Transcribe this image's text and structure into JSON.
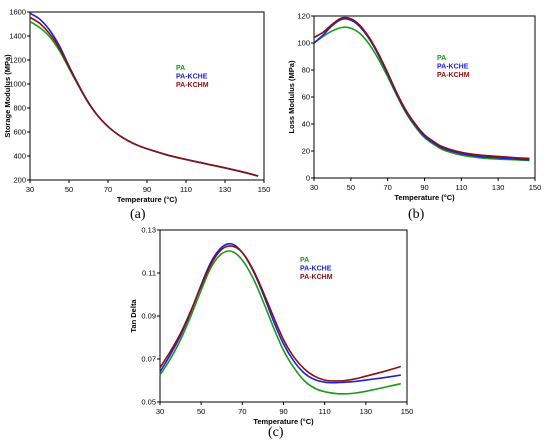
{
  "colors": {
    "PA": "#1a9a1a",
    "PA-KCHE": "#1f1fd6",
    "PA-KCHM": "#8b1010"
  },
  "chart_data": [
    {
      "type": "line",
      "caption": "(a)",
      "xlabel": "Temperature (°C)",
      "ylabel": "Storage Modulus (MPa)",
      "xlim": [
        30,
        150
      ],
      "ylim": [
        200,
        1600
      ],
      "xticks": [
        30,
        50,
        70,
        90,
        110,
        130,
        150
      ],
      "yticks": [
        200,
        400,
        600,
        800,
        1000,
        1200,
        1400,
        1600
      ],
      "legend": [
        "PA",
        "PA-KCHE",
        "PA-KCHM"
      ],
      "legend_position": "upper-right-center",
      "x": [
        30,
        35,
        40,
        45,
        50,
        55,
        60,
        65,
        70,
        75,
        80,
        85,
        90,
        100,
        110,
        120,
        130,
        140,
        147
      ],
      "series": [
        {
          "name": "PA",
          "values": [
            1520,
            1470,
            1395,
            1280,
            1130,
            980,
            840,
            730,
            645,
            580,
            530,
            490,
            460,
            410,
            370,
            335,
            300,
            262,
            232
          ]
        },
        {
          "name": "PA-KCHE",
          "values": [
            1590,
            1540,
            1450,
            1320,
            1150,
            990,
            845,
            730,
            645,
            580,
            530,
            490,
            460,
            410,
            372,
            337,
            302,
            264,
            234
          ]
        },
        {
          "name": "PA-KCHM",
          "values": [
            1555,
            1505,
            1420,
            1300,
            1140,
            985,
            842,
            730,
            645,
            580,
            530,
            490,
            460,
            410,
            371,
            336,
            301,
            263,
            233
          ]
        }
      ]
    },
    {
      "type": "line",
      "caption": "(b)",
      "xlabel": "Temperature (°C)",
      "ylabel": "Loss Modulus (MPa)",
      "xlim": [
        30,
        150
      ],
      "ylim": [
        0,
        120
      ],
      "xticks": [
        30,
        50,
        70,
        90,
        110,
        130,
        150
      ],
      "yticks": [
        0,
        20,
        40,
        60,
        80,
        100,
        120
      ],
      "legend": [
        "PA",
        "PA-KCHE",
        "PA-KCHM"
      ],
      "legend_position": "right",
      "x": [
        30,
        35,
        40,
        45,
        50,
        55,
        60,
        65,
        70,
        75,
        80,
        85,
        90,
        95,
        100,
        110,
        120,
        130,
        140,
        147
      ],
      "series": [
        {
          "name": "PA",
          "values": [
            100,
            105,
            109,
            111.5,
            111,
            107,
            99,
            88,
            75,
            61,
            48,
            38,
            30,
            25,
            21,
            17,
            15,
            14,
            13.5,
            13
          ]
        },
        {
          "name": "PA-KCHE",
          "values": [
            100,
            106,
            113,
            117.5,
            117,
            112,
            103,
            91,
            77,
            62,
            49,
            39,
            31,
            26,
            22,
            18,
            16,
            15,
            14,
            13.5
          ]
        },
        {
          "name": "PA-KCHM",
          "values": [
            104,
            108,
            114,
            118.5,
            118,
            113,
            104,
            92,
            78,
            63,
            50,
            40,
            32,
            27,
            23,
            19,
            17,
            16,
            15,
            14.5
          ]
        }
      ]
    },
    {
      "type": "line",
      "caption": "(c)",
      "xlabel": "Temperature (°C)",
      "ylabel": "Tan Delta",
      "xlim": [
        30,
        150
      ],
      "ylim": [
        0.05,
        0.13
      ],
      "xticks": [
        30,
        50,
        70,
        90,
        110,
        130,
        150
      ],
      "yticks": [
        0.05,
        0.07,
        0.09,
        0.11,
        0.13
      ],
      "legend": [
        "PA",
        "PA-KCHE",
        "PA-KCHM"
      ],
      "legend_position": "upper-right",
      "x": [
        30,
        35,
        40,
        45,
        50,
        55,
        60,
        65,
        70,
        75,
        80,
        85,
        90,
        95,
        100,
        105,
        110,
        115,
        120,
        125,
        130,
        140,
        147
      ],
      "series": [
        {
          "name": "PA",
          "values": [
            0.0625,
            0.07,
            0.079,
            0.09,
            0.102,
            0.113,
            0.119,
            0.12,
            0.116,
            0.108,
            0.097,
            0.085,
            0.074,
            0.066,
            0.06,
            0.0565,
            0.0548,
            0.054,
            0.0538,
            0.0542,
            0.055,
            0.057,
            0.0585
          ]
        },
        {
          "name": "PA-KCHE",
          "values": [
            0.064,
            0.072,
            0.081,
            0.092,
            0.1045,
            0.1155,
            0.122,
            0.1235,
            0.1195,
            0.1115,
            0.1005,
            0.088,
            0.077,
            0.069,
            0.0635,
            0.0605,
            0.0592,
            0.059,
            0.0592,
            0.0596,
            0.0602,
            0.0615,
            0.0625
          ]
        },
        {
          "name": "PA-KCHM",
          "values": [
            0.066,
            0.0735,
            0.082,
            0.0925,
            0.104,
            0.1145,
            0.121,
            0.1225,
            0.1195,
            0.112,
            0.1015,
            0.09,
            0.079,
            0.071,
            0.0655,
            0.062,
            0.0602,
            0.0598,
            0.06,
            0.0608,
            0.062,
            0.0645,
            0.0665
          ]
        }
      ]
    }
  ]
}
